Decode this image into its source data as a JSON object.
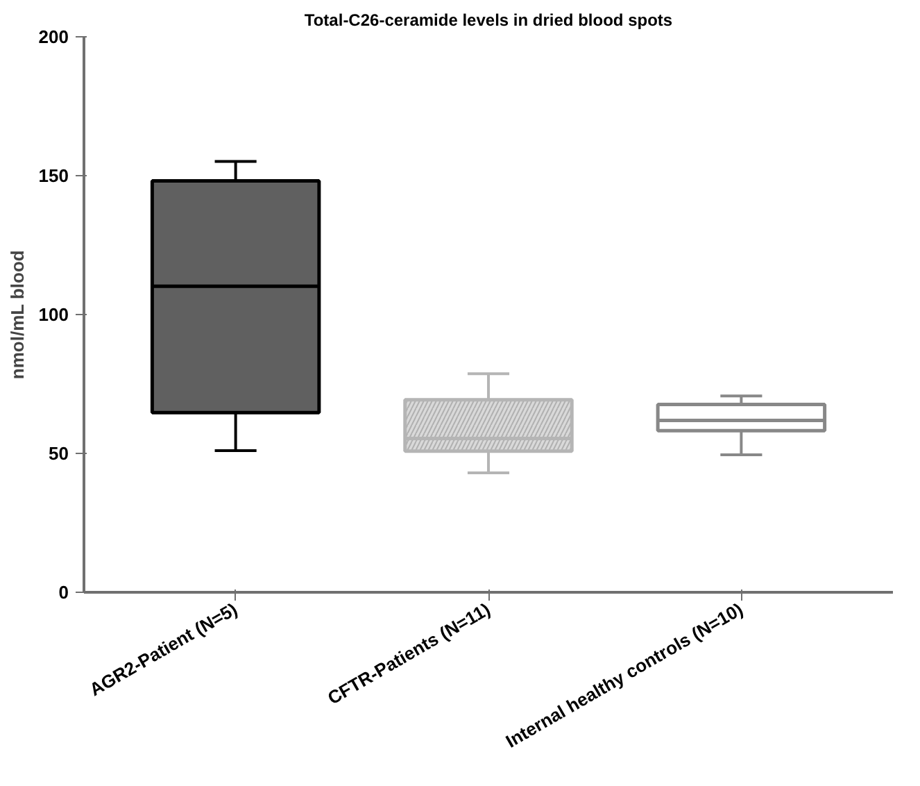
{
  "chart_data": {
    "type": "box",
    "title": "Total-C26-ceramide levels in dried blood spots",
    "ylabel": "nmol/mL blood",
    "categories": [
      "AGR2-Patient (N=5)",
      "CFTR-Patients (N=11)",
      "Internal healthy controls (N=10)"
    ],
    "boxes": [
      {
        "low": 51,
        "q1": 64.7,
        "median": 110.2,
        "q3": 148.1,
        "high": 155.1
      },
      {
        "low": 43,
        "q1": 50.8,
        "median": 55.4,
        "q3": 69.3,
        "high": 78.7
      },
      {
        "low": 49.5,
        "q1": 58.2,
        "median": 61.9,
        "q3": 67.6,
        "high": 70.7
      }
    ],
    "colors": [
      "#606060",
      "#d9d9d9",
      "#ffffff"
    ],
    "ylim": [
      0,
      200
    ],
    "yticks": [
      0,
      50,
      100,
      150,
      200
    ],
    "grid": false
  }
}
